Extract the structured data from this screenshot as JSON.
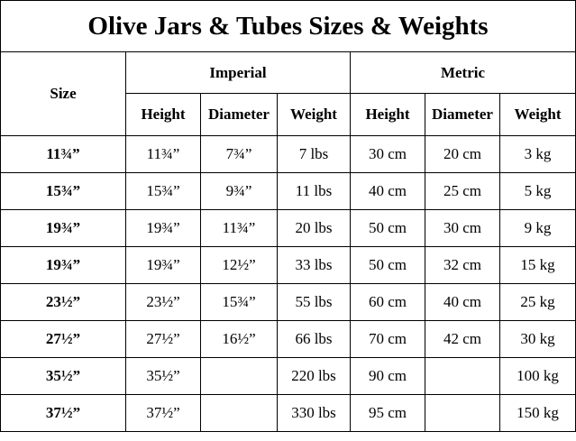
{
  "title": "Olive Jars & Tubes Sizes & Weights",
  "headers": {
    "size": "Size",
    "imperial": "Imperial",
    "metric": "Metric",
    "imperial_cols": [
      "Height",
      "Diameter",
      "Weight"
    ],
    "metric_cols": [
      "Height",
      "Diameter",
      "Weight"
    ]
  },
  "rows": [
    {
      "size": "11¾”",
      "imp_height": "11¾”",
      "imp_diameter": "7¾”",
      "imp_weight": "7 lbs",
      "met_height": "30 cm",
      "met_diameter": "20 cm",
      "met_weight": "3 kg"
    },
    {
      "size": "15¾”",
      "imp_height": "15¾”",
      "imp_diameter": "9¾”",
      "imp_weight": "11 lbs",
      "met_height": "40 cm",
      "met_diameter": "25 cm",
      "met_weight": "5 kg"
    },
    {
      "size": "19¾”",
      "imp_height": "19¾”",
      "imp_diameter": "11¾”",
      "imp_weight": "20 lbs",
      "met_height": "50 cm",
      "met_diameter": "30 cm",
      "met_weight": "9 kg"
    },
    {
      "size": "19¾”",
      "imp_height": "19¾”",
      "imp_diameter": "12½”",
      "imp_weight": "33 lbs",
      "met_height": "50 cm",
      "met_diameter": "32 cm",
      "met_weight": "15 kg"
    },
    {
      "size": "23½”",
      "imp_height": "23½”",
      "imp_diameter": "15¾”",
      "imp_weight": "55 lbs",
      "met_height": "60 cm",
      "met_diameter": "40 cm",
      "met_weight": "25 kg"
    },
    {
      "size": "27½”",
      "imp_height": "27½”",
      "imp_diameter": "16½”",
      "imp_weight": "66 lbs",
      "met_height": "70 cm",
      "met_diameter": "42 cm",
      "met_weight": "30 kg"
    },
    {
      "size": "35½”",
      "imp_height": "35½”",
      "imp_diameter": "",
      "imp_weight": "220 lbs",
      "met_height": "90 cm",
      "met_diameter": "",
      "met_weight": "100 kg"
    },
    {
      "size": "37½”",
      "imp_height": "37½”",
      "imp_diameter": "",
      "imp_weight": "330 lbs",
      "met_height": "95 cm",
      "met_diameter": "",
      "met_weight": "150 kg"
    }
  ]
}
